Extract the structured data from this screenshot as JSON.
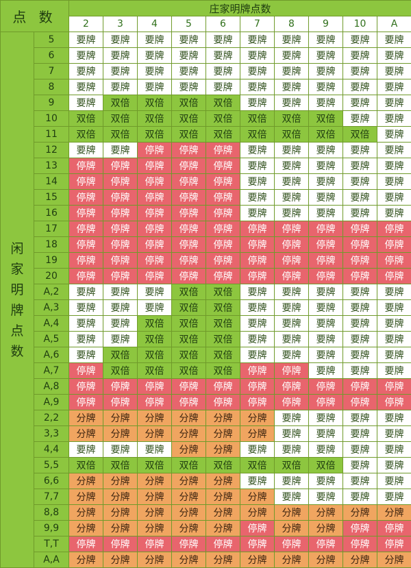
{
  "header": {
    "corner_label": "点 数",
    "dealer_title": "庄家明牌点数",
    "dealer_columns": [
      "2",
      "3",
      "4",
      "5",
      "6",
      "7",
      "8",
      "9",
      "10",
      "A"
    ]
  },
  "player_label": [
    "闲",
    "家",
    "明",
    "牌",
    "点",
    "数"
  ],
  "legend_actions": {
    "H": "要牌",
    "D": "双倍",
    "S": "停牌",
    "P": "分牌"
  },
  "action_colors": {
    "H": "#ffffff",
    "D": "#8dc63f",
    "S": "#e8656d",
    "P": "#f0a560"
  },
  "rows": [
    {
      "label": "5",
      "actions": [
        "H",
        "H",
        "H",
        "H",
        "H",
        "H",
        "H",
        "H",
        "H",
        "H"
      ]
    },
    {
      "label": "6",
      "actions": [
        "H",
        "H",
        "H",
        "H",
        "H",
        "H",
        "H",
        "H",
        "H",
        "H"
      ]
    },
    {
      "label": "7",
      "actions": [
        "H",
        "H",
        "H",
        "H",
        "H",
        "H",
        "H",
        "H",
        "H",
        "H"
      ]
    },
    {
      "label": "8",
      "actions": [
        "H",
        "H",
        "H",
        "H",
        "H",
        "H",
        "H",
        "H",
        "H",
        "H"
      ]
    },
    {
      "label": "9",
      "actions": [
        "H",
        "D",
        "D",
        "D",
        "D",
        "H",
        "H",
        "H",
        "H",
        "H"
      ]
    },
    {
      "label": "10",
      "actions": [
        "D",
        "D",
        "D",
        "D",
        "D",
        "D",
        "D",
        "D",
        "H",
        "H"
      ]
    },
    {
      "label": "11",
      "actions": [
        "D",
        "D",
        "D",
        "D",
        "D",
        "D",
        "D",
        "D",
        "D",
        "H"
      ]
    },
    {
      "label": "12",
      "actions": [
        "H",
        "H",
        "S",
        "S",
        "S",
        "H",
        "H",
        "H",
        "H",
        "H"
      ]
    },
    {
      "label": "13",
      "actions": [
        "S",
        "S",
        "S",
        "S",
        "S",
        "H",
        "H",
        "H",
        "H",
        "H"
      ]
    },
    {
      "label": "14",
      "actions": [
        "S",
        "S",
        "S",
        "S",
        "S",
        "H",
        "H",
        "H",
        "H",
        "H"
      ]
    },
    {
      "label": "15",
      "actions": [
        "S",
        "S",
        "S",
        "S",
        "S",
        "H",
        "H",
        "H",
        "H",
        "H"
      ]
    },
    {
      "label": "16",
      "actions": [
        "S",
        "S",
        "S",
        "S",
        "S",
        "H",
        "H",
        "H",
        "H",
        "H"
      ]
    },
    {
      "label": "17",
      "actions": [
        "S",
        "S",
        "S",
        "S",
        "S",
        "S",
        "S",
        "S",
        "S",
        "S"
      ]
    },
    {
      "label": "18",
      "actions": [
        "S",
        "S",
        "S",
        "S",
        "S",
        "S",
        "S",
        "S",
        "S",
        "S"
      ]
    },
    {
      "label": "19",
      "actions": [
        "S",
        "S",
        "S",
        "S",
        "S",
        "S",
        "S",
        "S",
        "S",
        "S"
      ]
    },
    {
      "label": "20",
      "actions": [
        "S",
        "S",
        "S",
        "S",
        "S",
        "S",
        "S",
        "S",
        "S",
        "S"
      ]
    },
    {
      "label": "A,2",
      "actions": [
        "H",
        "H",
        "H",
        "D",
        "D",
        "H",
        "H",
        "H",
        "H",
        "H"
      ]
    },
    {
      "label": "A,3",
      "actions": [
        "H",
        "H",
        "H",
        "D",
        "D",
        "H",
        "H",
        "H",
        "H",
        "H"
      ]
    },
    {
      "label": "A,4",
      "actions": [
        "H",
        "H",
        "D",
        "D",
        "D",
        "H",
        "H",
        "H",
        "H",
        "H"
      ]
    },
    {
      "label": "A,5",
      "actions": [
        "H",
        "H",
        "D",
        "D",
        "D",
        "H",
        "H",
        "H",
        "H",
        "H"
      ]
    },
    {
      "label": "A,6",
      "actions": [
        "H",
        "D",
        "D",
        "D",
        "D",
        "H",
        "H",
        "H",
        "H",
        "H"
      ]
    },
    {
      "label": "A,7",
      "actions": [
        "S",
        "D",
        "D",
        "D",
        "D",
        "S",
        "S",
        "H",
        "H",
        "H"
      ]
    },
    {
      "label": "A,8",
      "actions": [
        "S",
        "S",
        "S",
        "S",
        "S",
        "S",
        "S",
        "S",
        "S",
        "S"
      ]
    },
    {
      "label": "A,9",
      "actions": [
        "S",
        "S",
        "S",
        "S",
        "S",
        "S",
        "S",
        "S",
        "S",
        "S"
      ]
    },
    {
      "label": "2,2",
      "actions": [
        "P",
        "P",
        "P",
        "P",
        "P",
        "P",
        "H",
        "H",
        "H",
        "H"
      ]
    },
    {
      "label": "3,3",
      "actions": [
        "P",
        "P",
        "P",
        "P",
        "P",
        "P",
        "H",
        "H",
        "H",
        "H"
      ]
    },
    {
      "label": "4,4",
      "actions": [
        "H",
        "H",
        "H",
        "P",
        "P",
        "H",
        "H",
        "H",
        "H",
        "H"
      ]
    },
    {
      "label": "5,5",
      "actions": [
        "D",
        "D",
        "D",
        "D",
        "D",
        "D",
        "D",
        "D",
        "H",
        "H"
      ]
    },
    {
      "label": "6,6",
      "actions": [
        "P",
        "P",
        "P",
        "P",
        "P",
        "H",
        "H",
        "H",
        "H",
        "H"
      ]
    },
    {
      "label": "7,7",
      "actions": [
        "P",
        "P",
        "P",
        "P",
        "P",
        "P",
        "H",
        "H",
        "H",
        "H"
      ]
    },
    {
      "label": "8,8",
      "actions": [
        "P",
        "P",
        "P",
        "P",
        "P",
        "P",
        "P",
        "P",
        "P",
        "P"
      ]
    },
    {
      "label": "9,9",
      "actions": [
        "P",
        "P",
        "P",
        "P",
        "P",
        "S",
        "P",
        "P",
        "S",
        "S"
      ]
    },
    {
      "label": "T,T",
      "actions": [
        "S",
        "S",
        "S",
        "S",
        "S",
        "S",
        "S",
        "S",
        "S",
        "S"
      ]
    },
    {
      "label": "A,A",
      "actions": [
        "P",
        "P",
        "P",
        "P",
        "P",
        "P",
        "P",
        "P",
        "P",
        "P"
      ]
    }
  ]
}
